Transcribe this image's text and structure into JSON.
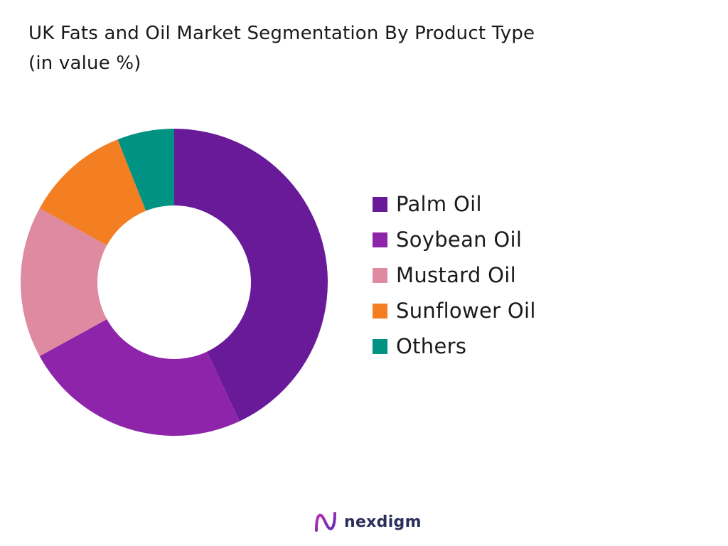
{
  "title": {
    "line1": "UK Fats and Oil Market Segmentation By Product Type",
    "line2": "(in value %)"
  },
  "chart_data": {
    "type": "pie",
    "variant": "donut",
    "categories": [
      "Palm Oil",
      "Soybean Oil",
      "Mustard Oil",
      "Sunflower Oil",
      "Others"
    ],
    "values": [
      43,
      24,
      16,
      11,
      6
    ],
    "colors": [
      "#681a98",
      "#8e24aa",
      "#de8aa0",
      "#f37f22",
      "#009384"
    ],
    "legend_position": "right",
    "start_angle_deg": 0,
    "direction": "clockwise"
  },
  "brand": {
    "name": "nexdigm",
    "logo_icon": "nexdigm-logo-icon"
  }
}
